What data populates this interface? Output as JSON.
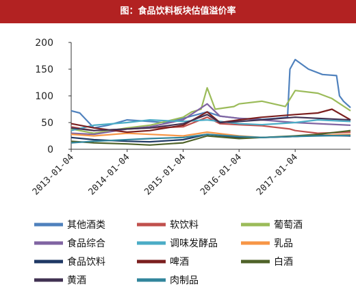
{
  "header": {
    "title": "图：食品饮料板块估值溢价率"
  },
  "chart_data": {
    "type": "line",
    "title": "图：食品饮料板块估值溢价率",
    "xlabel": "",
    "ylabel": "",
    "ylim": [
      0,
      200
    ],
    "y_ticks": [
      0,
      50,
      100,
      150,
      200
    ],
    "x_ticks": [
      "2013-01-04",
      "2014-01-04",
      "2015-01-04",
      "2016-01-04",
      "2017-01-04"
    ],
    "xlim": [
      "2013-01-04",
      "2017-12-31"
    ],
    "legend_position": "bottom",
    "grid": false,
    "series": [
      {
        "name": "其他酒类",
        "color": "#4f81bd",
        "points": [
          [
            "2013-01-04",
            72
          ],
          [
            "2013-03-01",
            68
          ],
          [
            "2013-06-01",
            40
          ],
          [
            "2013-09-01",
            45
          ],
          [
            "2014-01-04",
            55
          ],
          [
            "2014-06-01",
            52
          ],
          [
            "2014-09-01",
            50
          ],
          [
            "2015-01-04",
            58
          ],
          [
            "2015-06-10",
            70
          ],
          [
            "2015-09-01",
            62
          ],
          [
            "2016-01-04",
            58
          ],
          [
            "2016-06-01",
            56
          ],
          [
            "2016-09-01",
            58
          ],
          [
            "2016-11-15",
            60
          ],
          [
            "2016-12-01",
            150
          ],
          [
            "2017-01-04",
            168
          ],
          [
            "2017-04-01",
            150
          ],
          [
            "2017-07-01",
            140
          ],
          [
            "2017-10-01",
            138
          ],
          [
            "2017-10-20",
            100
          ],
          [
            "2017-11-15",
            90
          ],
          [
            "2017-12-31",
            78
          ]
        ]
      },
      {
        "name": "软饮料",
        "color": "#c0504d",
        "points": [
          [
            "2013-01-04",
            42
          ],
          [
            "2013-06-01",
            35
          ],
          [
            "2014-01-04",
            38
          ],
          [
            "2014-06-01",
            40
          ],
          [
            "2015-01-04",
            42
          ],
          [
            "2015-06-10",
            60
          ],
          [
            "2015-09-01",
            48
          ],
          [
            "2016-01-04",
            46
          ],
          [
            "2016-06-01",
            44
          ],
          [
            "2016-12-01",
            38
          ],
          [
            "2017-01-04",
            35
          ],
          [
            "2017-06-01",
            30
          ],
          [
            "2017-12-31",
            32
          ]
        ]
      },
      {
        "name": "葡萄酒",
        "color": "#9bbb59",
        "points": [
          [
            "2013-01-04",
            38
          ],
          [
            "2013-06-01",
            30
          ],
          [
            "2014-01-04",
            40
          ],
          [
            "2014-06-01",
            45
          ],
          [
            "2015-01-04",
            60
          ],
          [
            "2015-03-01",
            70
          ],
          [
            "2015-05-01",
            75
          ],
          [
            "2015-06-10",
            115
          ],
          [
            "2015-08-01",
            75
          ],
          [
            "2015-12-01",
            80
          ],
          [
            "2016-01-04",
            85
          ],
          [
            "2016-06-01",
            90
          ],
          [
            "2016-11-01",
            80
          ],
          [
            "2017-01-04",
            110
          ],
          [
            "2017-06-01",
            105
          ],
          [
            "2017-09-01",
            95
          ],
          [
            "2017-12-31",
            72
          ]
        ]
      },
      {
        "name": "食品综合",
        "color": "#8064a2",
        "points": [
          [
            "2013-01-04",
            30
          ],
          [
            "2013-06-01",
            28
          ],
          [
            "2014-01-04",
            38
          ],
          [
            "2014-06-01",
            42
          ],
          [
            "2015-01-04",
            55
          ],
          [
            "2015-06-10",
            85
          ],
          [
            "2015-09-01",
            62
          ],
          [
            "2016-01-04",
            58
          ],
          [
            "2016-06-01",
            55
          ],
          [
            "2017-01-04",
            50
          ],
          [
            "2017-06-01",
            48
          ],
          [
            "2017-12-31",
            45
          ]
        ]
      },
      {
        "name": "调味发酵品",
        "color": "#4bacc6",
        "points": [
          [
            "2013-01-04",
            35
          ],
          [
            "2013-06-01",
            45
          ],
          [
            "2014-01-04",
            50
          ],
          [
            "2014-06-01",
            55
          ],
          [
            "2015-01-04",
            52
          ],
          [
            "2015-06-10",
            55
          ],
          [
            "2016-01-04",
            48
          ],
          [
            "2016-06-01",
            46
          ],
          [
            "2017-01-04",
            50
          ],
          [
            "2017-06-01",
            55
          ],
          [
            "2017-12-31",
            52
          ]
        ]
      },
      {
        "name": "乳品",
        "color": "#f79646",
        "points": [
          [
            "2013-01-04",
            28
          ],
          [
            "2013-06-01",
            25
          ],
          [
            "2014-01-04",
            30
          ],
          [
            "2014-06-01",
            28
          ],
          [
            "2015-01-04",
            25
          ],
          [
            "2015-06-10",
            32
          ],
          [
            "2016-01-04",
            25
          ],
          [
            "2016-06-01",
            22
          ],
          [
            "2017-01-04",
            24
          ],
          [
            "2017-06-01",
            26
          ],
          [
            "2017-12-31",
            28
          ]
        ]
      },
      {
        "name": "食品饮料",
        "color": "#1f3864",
        "points": [
          [
            "2013-01-04",
            22
          ],
          [
            "2013-06-01",
            18
          ],
          [
            "2014-01-04",
            15
          ],
          [
            "2014-06-01",
            14
          ],
          [
            "2015-01-04",
            18
          ],
          [
            "2015-06-10",
            28
          ],
          [
            "2016-01-04",
            22
          ],
          [
            "2016-06-01",
            22
          ],
          [
            "2017-01-04",
            24
          ],
          [
            "2017-06-01",
            26
          ],
          [
            "2017-12-31",
            25
          ]
        ]
      },
      {
        "name": "啤酒",
        "color": "#7b1f1f",
        "points": [
          [
            "2013-01-04",
            48
          ],
          [
            "2013-06-01",
            40
          ],
          [
            "2014-01-04",
            32
          ],
          [
            "2014-06-01",
            35
          ],
          [
            "2015-01-04",
            45
          ],
          [
            "2015-06-10",
            70
          ],
          [
            "2015-09-01",
            50
          ],
          [
            "2016-01-04",
            55
          ],
          [
            "2016-06-01",
            60
          ],
          [
            "2017-01-04",
            65
          ],
          [
            "2017-06-01",
            68
          ],
          [
            "2017-09-01",
            75
          ],
          [
            "2017-12-31",
            55
          ]
        ]
      },
      {
        "name": "白酒",
        "color": "#4f6228",
        "points": [
          [
            "2013-01-04",
            15
          ],
          [
            "2013-06-01",
            12
          ],
          [
            "2014-01-04",
            10
          ],
          [
            "2014-06-01",
            8
          ],
          [
            "2015-01-04",
            12
          ],
          [
            "2015-06-10",
            25
          ],
          [
            "2016-01-04",
            20
          ],
          [
            "2016-06-01",
            22
          ],
          [
            "2017-01-04",
            25
          ],
          [
            "2017-06-01",
            28
          ],
          [
            "2017-12-31",
            35
          ]
        ]
      },
      {
        "name": "黄酒",
        "color": "#403152",
        "points": [
          [
            "2013-01-04",
            40
          ],
          [
            "2013-06-01",
            35
          ],
          [
            "2014-01-04",
            38
          ],
          [
            "2014-06-01",
            40
          ],
          [
            "2015-01-04",
            48
          ],
          [
            "2015-06-10",
            65
          ],
          [
            "2015-09-01",
            50
          ],
          [
            "2016-01-04",
            52
          ],
          [
            "2016-06-01",
            55
          ],
          [
            "2017-01-04",
            60
          ],
          [
            "2017-06-01",
            58
          ],
          [
            "2017-12-31",
            55
          ]
        ]
      },
      {
        "name": "肉制品",
        "color": "#31859c",
        "points": [
          [
            "2013-01-04",
            12
          ],
          [
            "2013-06-01",
            15
          ],
          [
            "2014-01-04",
            18
          ],
          [
            "2014-06-01",
            20
          ],
          [
            "2015-01-04",
            22
          ],
          [
            "2015-06-10",
            28
          ],
          [
            "2016-01-04",
            24
          ],
          [
            "2016-06-01",
            22
          ],
          [
            "2017-01-04",
            24
          ],
          [
            "2017-06-01",
            25
          ],
          [
            "2017-12-31",
            26
          ]
        ]
      }
    ]
  }
}
